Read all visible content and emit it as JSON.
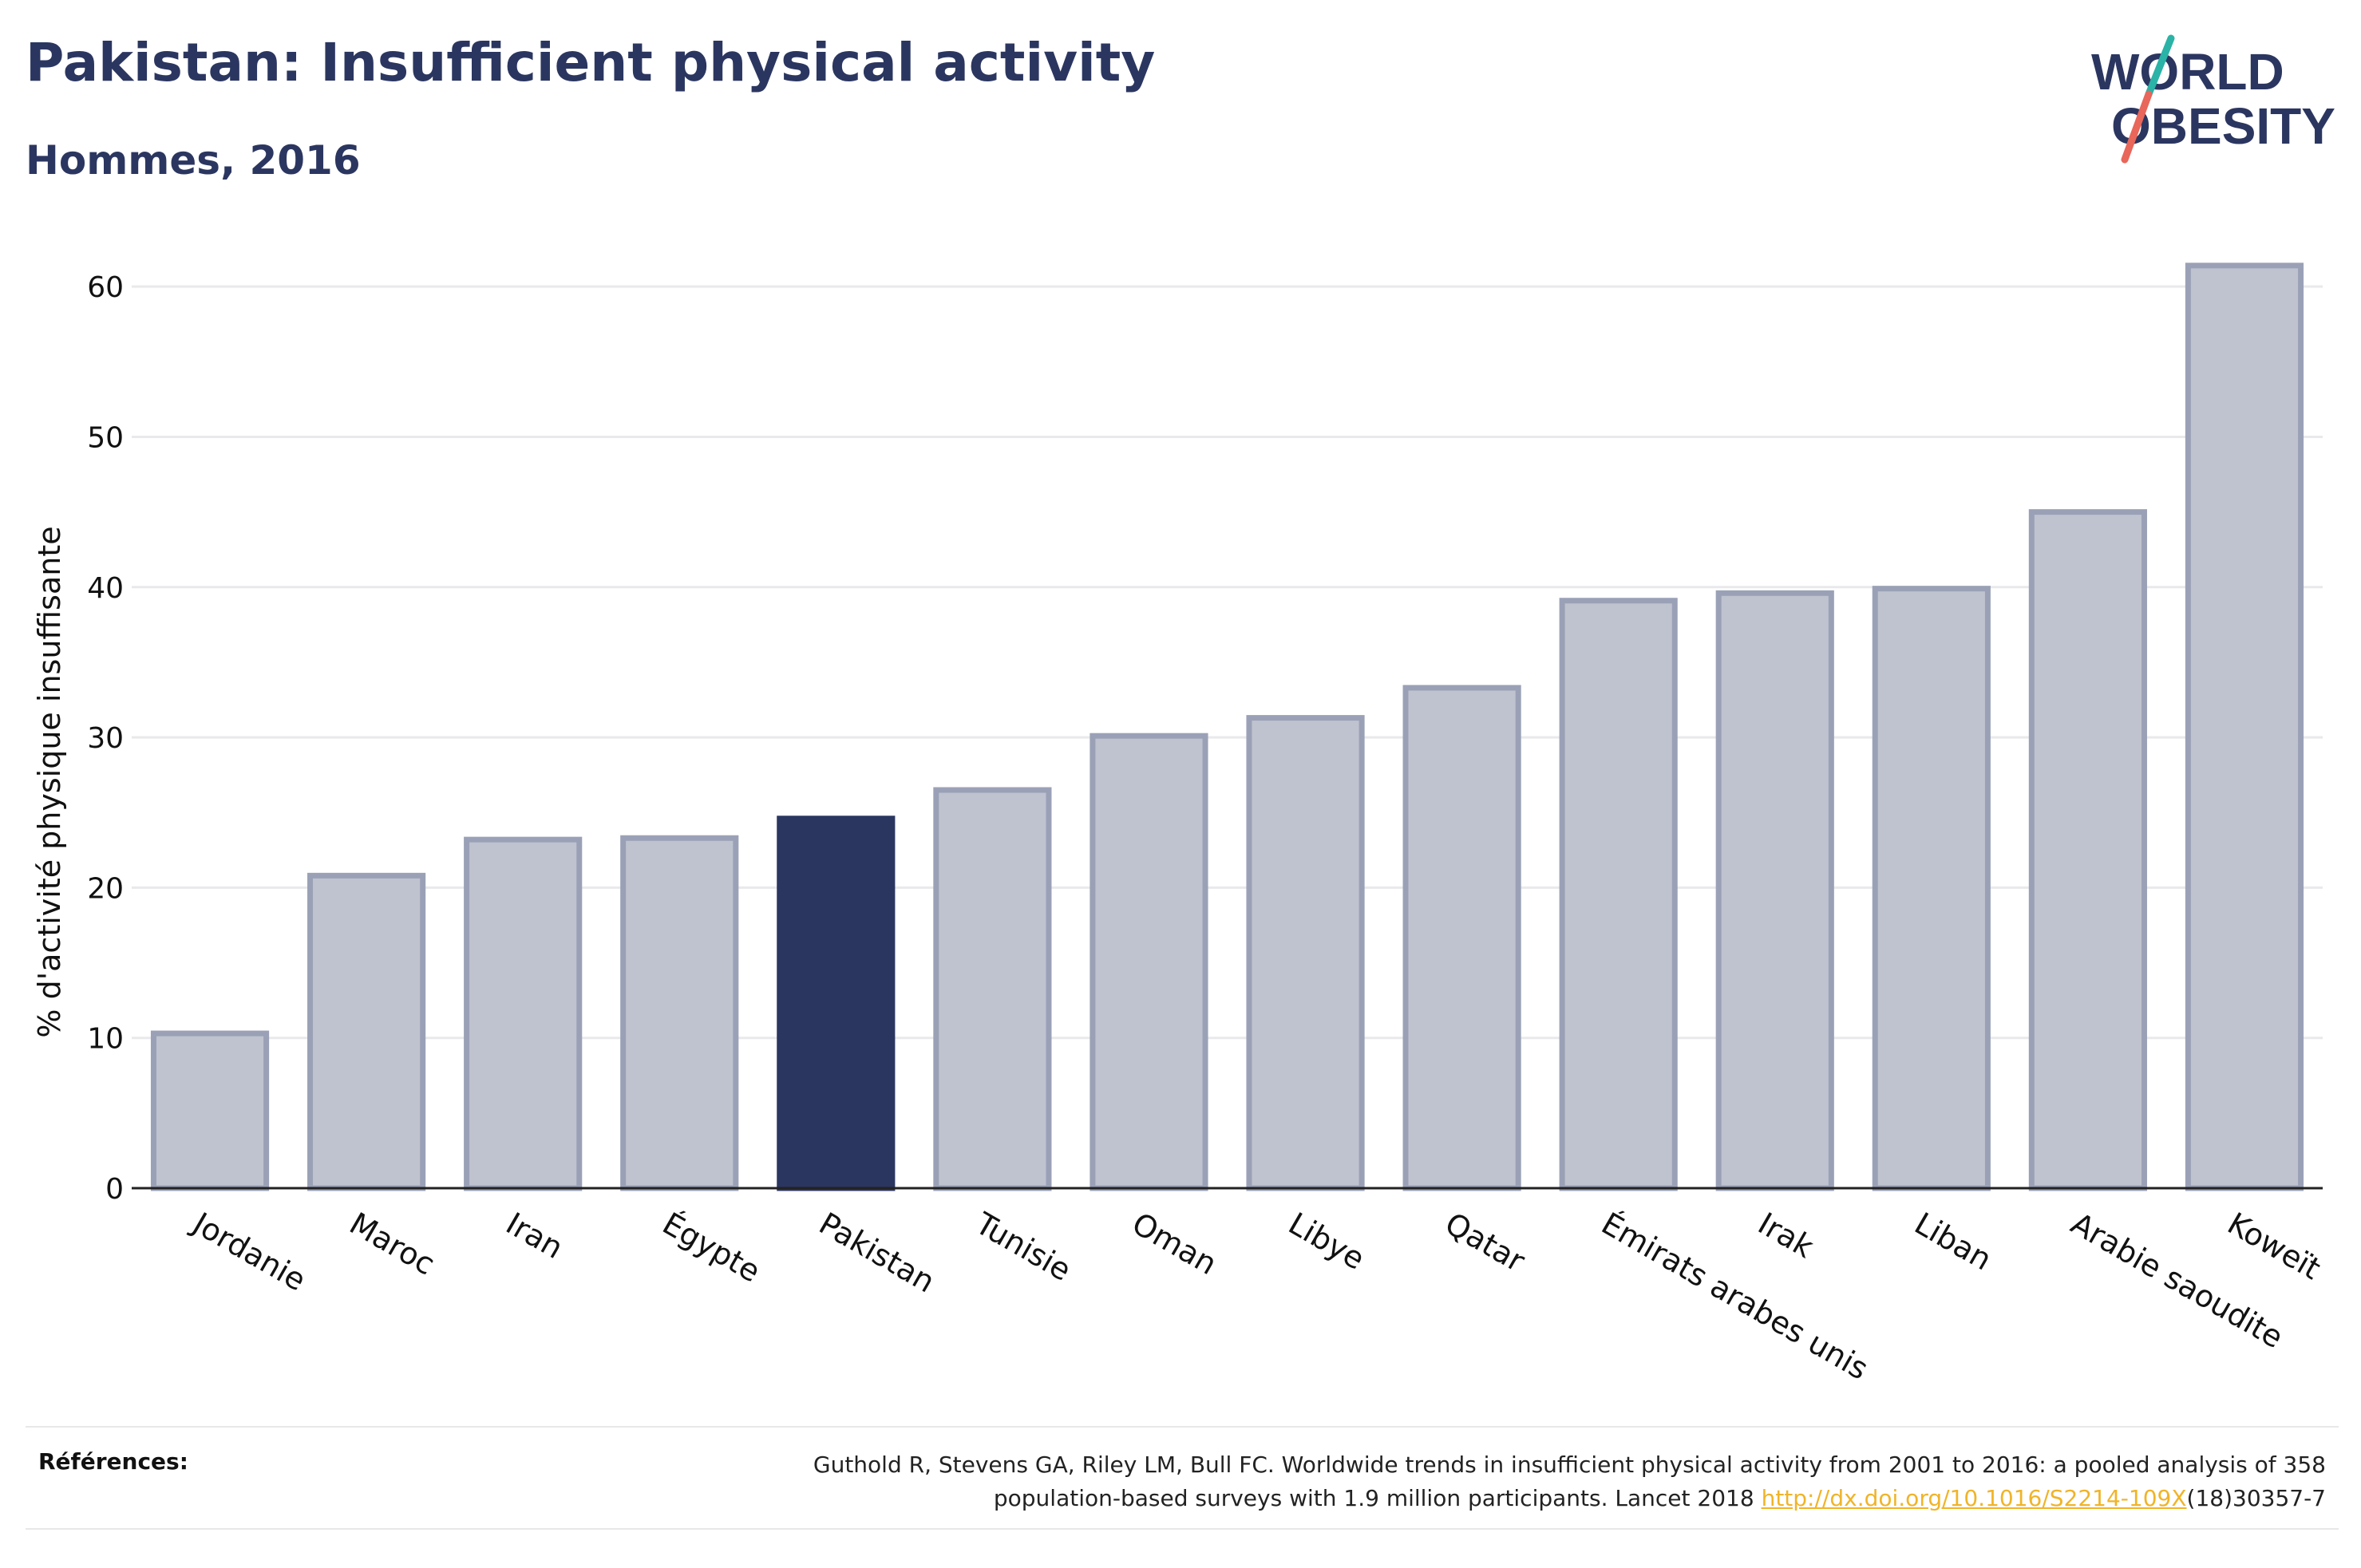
{
  "header": {
    "title": "Pakistan: Insufficient physical activity",
    "subtitle": "Hommes, 2016"
  },
  "logo": {
    "line1": "WORLD",
    "line2": "OBESITY",
    "slash_top_color": "#2ab3a6",
    "slash_bottom_color": "#e8665a"
  },
  "colors": {
    "bar": "#bfc3cf",
    "bar_border": "#9aa1b7",
    "highlight": "#2b3660",
    "grid": "#e9e9ec",
    "axis": "#222222"
  },
  "chart_data": {
    "type": "bar",
    "title": "Pakistan: Insufficient physical activity",
    "subtitle": "Hommes, 2016",
    "xlabel": "",
    "ylabel": "% d'activité physique insuffisante",
    "ylim": [
      0,
      65
    ],
    "yticks": [
      0,
      10,
      20,
      30,
      40,
      50,
      60
    ],
    "grid": true,
    "highlight": "Pakistan",
    "categories": [
      "Jordanie",
      "Maroc",
      "Iran",
      "Égypte",
      "Pakistan",
      "Tunisie",
      "Oman",
      "Libye",
      "Qatar",
      "Émirats arabes unis",
      "Irak",
      "Liban",
      "Arabie saoudite",
      "Koweït"
    ],
    "values": [
      10.3,
      20.8,
      23.2,
      23.3,
      24.6,
      26.5,
      30.1,
      31.3,
      33.3,
      39.1,
      39.6,
      39.9,
      45.0,
      61.4
    ]
  },
  "footer": {
    "label": "Références:",
    "line1": "Guthold R, Stevens GA, Riley LM, Bull FC. Worldwide trends in insufficient physical activity from 2001 to 2016: a pooled analysis of 358",
    "line2_prefix": "population-based surveys with 1.9 million participants. Lancet 2018 ",
    "link": "http://dx.doi.org/10.1016/S2214-109X",
    "line2_suffix": "(18)30357-7"
  }
}
